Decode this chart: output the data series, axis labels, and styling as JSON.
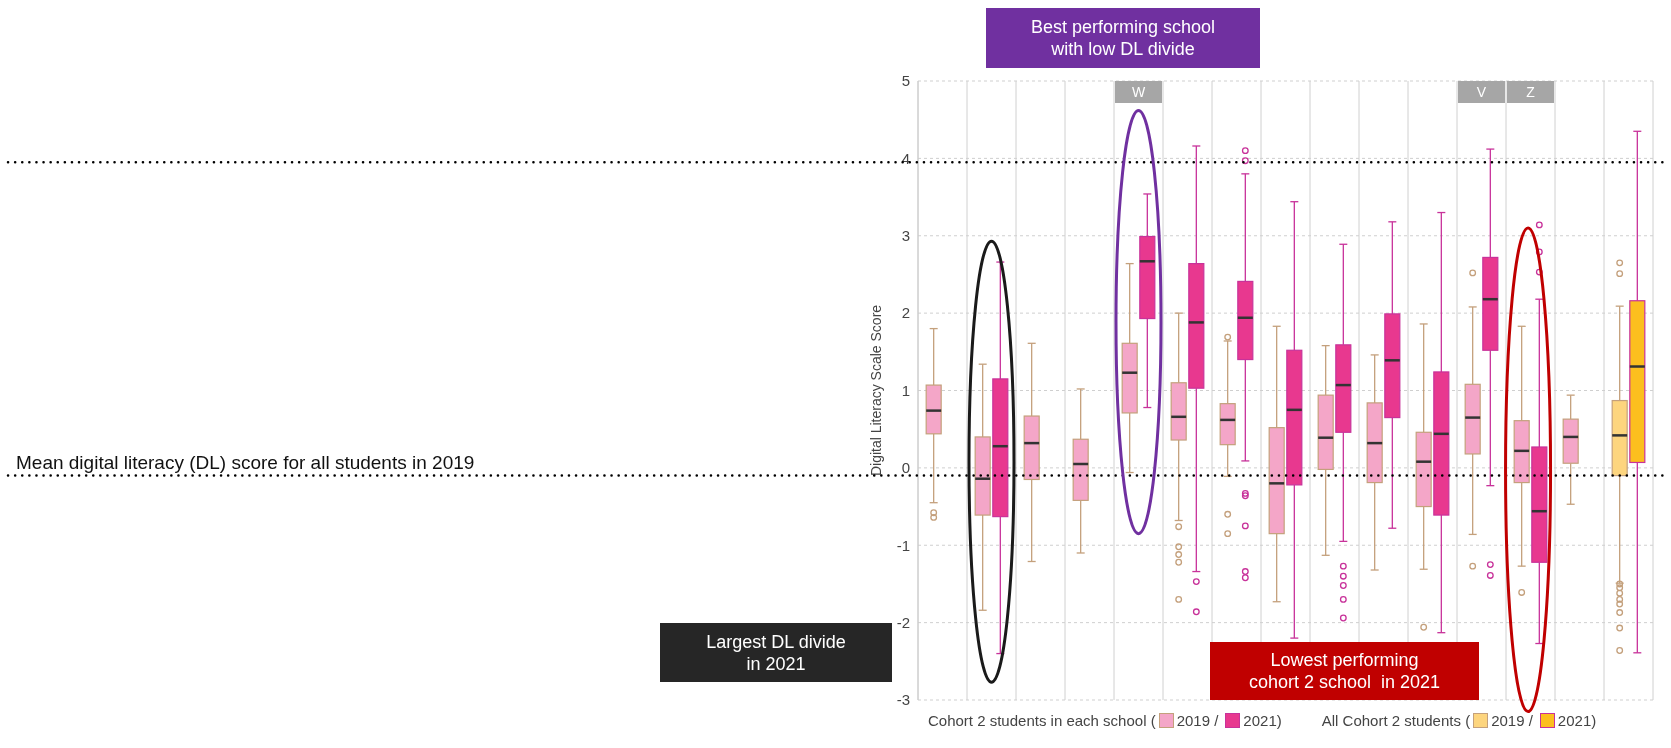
{
  "chart_data": {
    "type": "box",
    "ylabel": "Digital Literacy Scale Score",
    "legend_title": "Cohort 2 students in each school (",
    "categories": [
      null,
      null,
      null,
      null,
      "W",
      null,
      null,
      null,
      null,
      null,
      null,
      "V",
      "Z",
      null,
      null
    ],
    "ylim": [
      -3,
      5
    ],
    "yticks": [
      -3,
      -2,
      -1,
      0,
      1,
      2,
      3,
      4,
      5
    ],
    "grid": true,
    "legend": "bottom",
    "series": [
      {
        "name": "2019 /",
        "color": "#f4a6c8",
        "boxes": [
          {
            "low": -0.45,
            "q1": 0.44,
            "median": 0.74,
            "q3": 1.07,
            "high": 1.8,
            "outliers": [
              -0.58,
              -0.64
            ]
          },
          {
            "low": -1.84,
            "q1": -0.61,
            "median": -0.14,
            "q3": 0.4,
            "high": 1.34
          },
          {
            "low": -1.21,
            "q1": -0.15,
            "median": 0.32,
            "q3": 0.67,
            "high": 1.61
          },
          {
            "low": -1.1,
            "q1": -0.42,
            "median": 0.05,
            "q3": 0.37,
            "high": 1.02
          },
          {
            "low": -0.06,
            "q1": 0.71,
            "median": 1.23,
            "q3": 1.61,
            "high": 2.64
          },
          {
            "low": -0.68,
            "q1": 0.36,
            "median": 0.66,
            "q3": 1.1,
            "high": 2.0,
            "outliers": [
              -0.76,
              -1.02,
              -1.12,
              -1.22,
              -1.7
            ]
          },
          {
            "low": -0.11,
            "q1": 0.3,
            "median": 0.62,
            "q3": 0.83,
            "high": 1.64,
            "outliers": [
              1.69,
              -0.6,
              -0.85
            ]
          },
          {
            "low": -1.73,
            "q1": -0.85,
            "median": -0.2,
            "q3": 0.52,
            "high": 1.83
          },
          {
            "low": -1.13,
            "q1": -0.02,
            "median": 0.39,
            "q3": 0.94,
            "high": 1.58
          },
          {
            "low": -1.32,
            "q1": -0.19,
            "median": 0.32,
            "q3": 0.84,
            "high": 1.46
          },
          {
            "low": -1.31,
            "q1": -0.5,
            "median": 0.08,
            "q3": 0.46,
            "high": 1.86,
            "outliers": [
              -2.06
            ]
          },
          {
            "low": -0.86,
            "q1": 0.18,
            "median": 0.65,
            "q3": 1.08,
            "high": 2.08,
            "outliers": [
              2.52,
              -1.27
            ]
          },
          {
            "low": -1.27,
            "q1": -0.19,
            "median": 0.22,
            "q3": 0.61,
            "high": 1.83,
            "outliers": [
              -1.61
            ]
          },
          {
            "low": -0.47,
            "q1": 0.06,
            "median": 0.4,
            "q3": 0.63,
            "high": 0.94
          },
          null
        ]
      },
      {
        "name": "2021)",
        "color": "#e8388f",
        "boxes": [
          null,
          {
            "low": -2.4,
            "q1": -0.63,
            "median": 0.28,
            "q3": 1.15,
            "high": 2.66
          },
          null,
          null,
          {
            "low": 0.78,
            "q1": 1.93,
            "median": 2.67,
            "q3": 2.99,
            "high": 3.54
          },
          {
            "low": -1.34,
            "q1": 1.03,
            "median": 1.88,
            "q3": 2.64,
            "high": 4.16,
            "outliers": [
              -1.47,
              -1.86
            ]
          },
          {
            "low": 0.09,
            "q1": 1.4,
            "median": 1.94,
            "q3": 2.41,
            "high": 3.8,
            "outliers": [
              4.1,
              3.97,
              -0.33,
              -0.36,
              -0.75,
              -1.34,
              -1.42
            ]
          },
          {
            "low": -2.2,
            "q1": -0.22,
            "median": 0.75,
            "q3": 1.52,
            "high": 3.44
          },
          {
            "low": -0.95,
            "q1": 0.46,
            "median": 1.07,
            "q3": 1.59,
            "high": 2.89,
            "outliers": [
              -1.27,
              -1.4,
              -1.52,
              -1.7,
              -1.94
            ]
          },
          {
            "low": -0.78,
            "q1": 0.65,
            "median": 1.39,
            "q3": 1.99,
            "high": 3.18
          },
          {
            "low": -2.13,
            "q1": -0.61,
            "median": 0.44,
            "q3": 1.24,
            "high": 3.3
          },
          {
            "low": -0.23,
            "q1": 1.52,
            "median": 2.18,
            "q3": 2.72,
            "high": 4.12,
            "outliers": [
              -1.25,
              -1.39
            ]
          },
          {
            "low": -2.27,
            "q1": -1.22,
            "median": -0.56,
            "q3": 0.27,
            "high": 2.18,
            "outliers": [
              3.14,
              2.79,
              2.53
            ]
          },
          null,
          null
        ]
      },
      {
        "name": "2019 /",
        "color": "#fdd57e",
        "boxes": [
          null,
          null,
          null,
          null,
          null,
          null,
          null,
          null,
          null,
          null,
          null,
          null,
          null,
          null,
          {
            "low": -1.49,
            "q1": -0.1,
            "median": 0.42,
            "q3": 0.87,
            "high": 2.09,
            "outliers": [
              2.65,
              2.51,
              -1.5,
              -1.55,
              -1.62,
              -1.7,
              -1.76,
              -1.87,
              -2.07,
              -2.36
            ]
          }
        ]
      },
      {
        "name": "2021)",
        "color": "#fcbf1e",
        "boxes": [
          null,
          null,
          null,
          null,
          null,
          null,
          null,
          null,
          null,
          null,
          null,
          null,
          null,
          null,
          {
            "low": -2.39,
            "q1": 0.07,
            "median": 1.31,
            "q3": 2.16,
            "high": 4.35
          }
        ]
      }
    ],
    "ref_lines": [
      {
        "axis": "y",
        "value": 3.95,
        "label": null,
        "color": "#000000",
        "line_style": "dotted"
      },
      {
        "axis": "y",
        "value": -0.1,
        "label": "Mean digital literacy (DL) score for all students in 2019",
        "color": "#000000",
        "line_style": "dotted"
      }
    ],
    "annotations": [
      "Best performing school with low DL divide",
      "Largest DL divide in 2021",
      "Lowest performing cohort 2 school  in 2021",
      "All Cohort 2 students ("
    ]
  }
}
